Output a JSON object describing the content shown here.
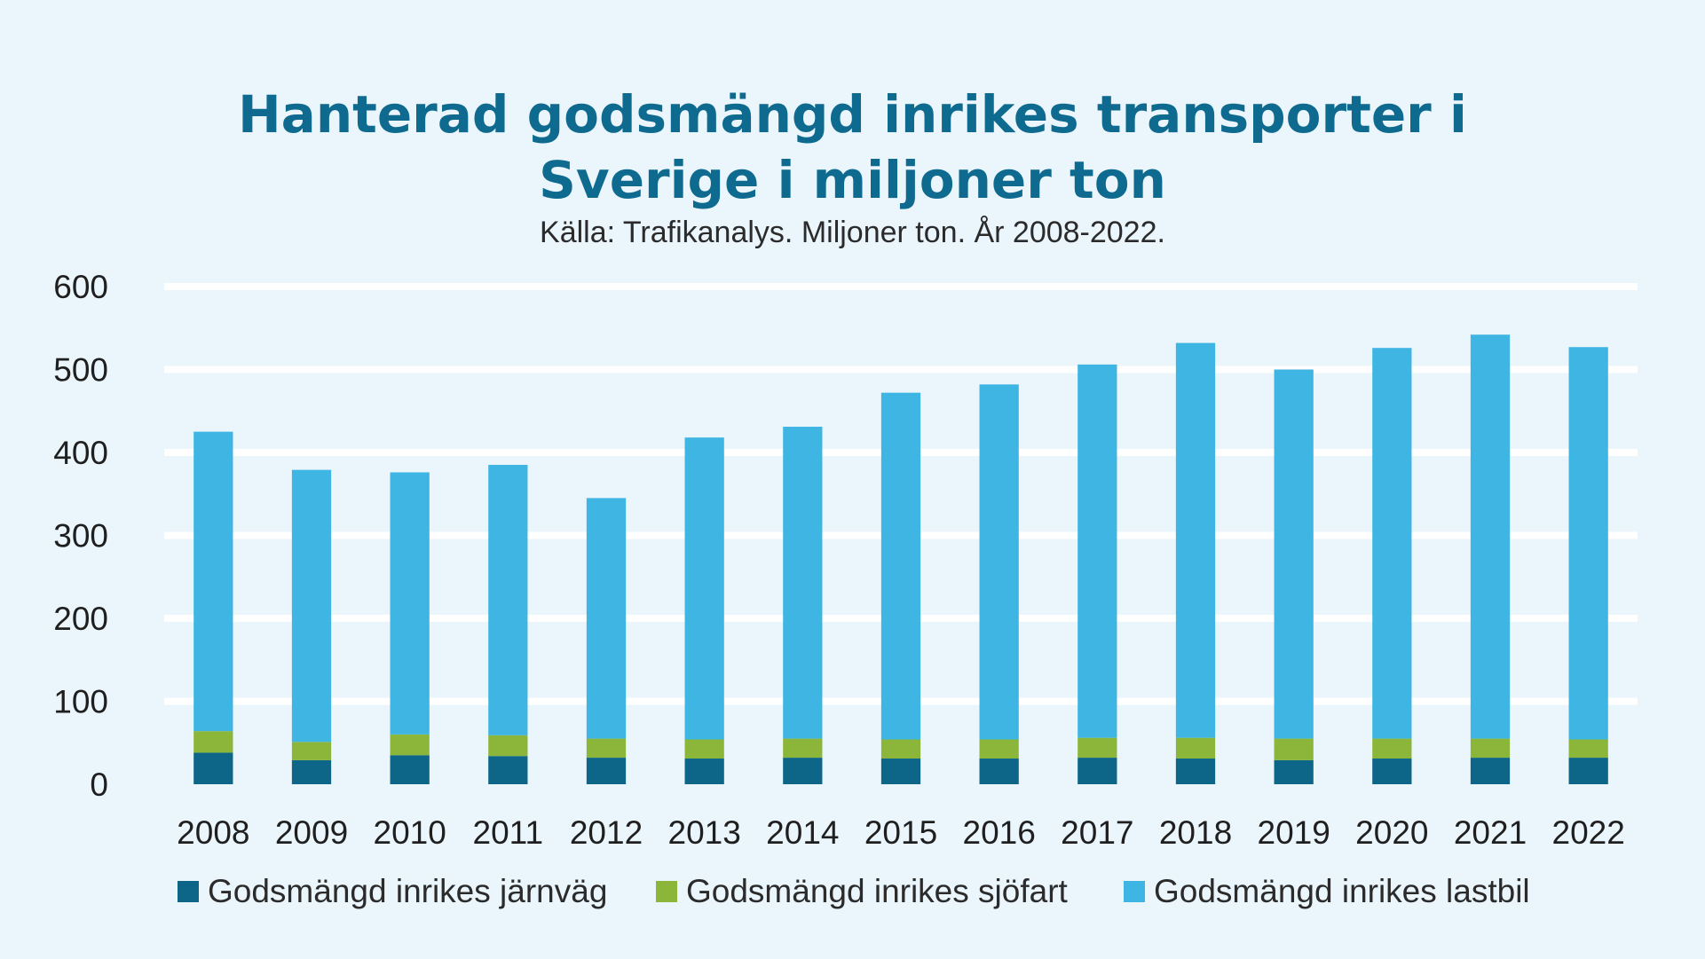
{
  "chart_data": {
    "type": "bar",
    "stacked": true,
    "title_line1": "Hanterad godsmängd inrikes transporter i",
    "title_line2": "Sverige i miljoner ton",
    "subtitle": "Källa: Trafikanalys. Miljoner ton. År 2008-2022.",
    "categories": [
      "2008",
      "2009",
      "2010",
      "2011",
      "2012",
      "2013",
      "2014",
      "2015",
      "2016",
      "2017",
      "2018",
      "2019",
      "2020",
      "2021",
      "2022"
    ],
    "series": [
      {
        "name": "Godsmängd inrikes järnväg",
        "color": "#0d6688",
        "values": [
          38,
          29,
          35,
          34,
          32,
          31,
          32,
          31,
          31,
          32,
          31,
          29,
          31,
          32,
          32
        ]
      },
      {
        "name": "Godsmängd inrikes sjöfart",
        "color": "#8bb63a",
        "values": [
          26,
          22,
          25,
          25,
          23,
          23,
          23,
          23,
          23,
          24,
          25,
          26,
          24,
          23,
          22
        ]
      },
      {
        "name": "Godsmängd inrikes lastbil",
        "color": "#3fb5e3",
        "values": [
          361,
          328,
          316,
          326,
          290,
          364,
          376,
          418,
          428,
          450,
          476,
          445,
          471,
          487,
          473
        ]
      }
    ],
    "ylim": [
      0,
      600
    ],
    "yticks": [
      "0",
      "100",
      "200",
      "300",
      "400",
      "500",
      "600"
    ],
    "grid": true,
    "legend_position": "bottom"
  }
}
